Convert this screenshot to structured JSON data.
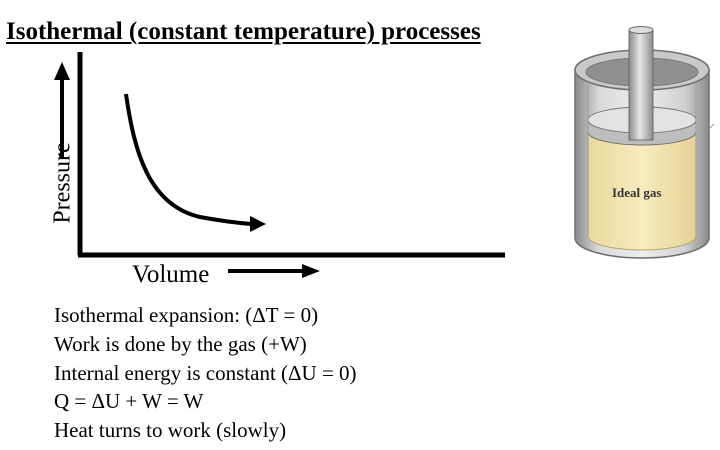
{
  "title": "Isothermal (constant temperature) processes",
  "graph": {
    "ylabel": "Pressure",
    "xlabel": "Volume"
  },
  "notes": [
    "Isothermal expansion: (ΔT = 0)",
    "Work is done by the gas  (+W)",
    "Internal energy is constant (ΔU = 0)",
    "Q = ΔU + W = W",
    "Heat turns to work (slowly)"
  ],
  "cylinder": {
    "label": "Ideal gas"
  },
  "colors": {
    "gas_fill": "#f6e6b4",
    "cylinder_wall": "#9a9a9a",
    "line": "#000000"
  }
}
